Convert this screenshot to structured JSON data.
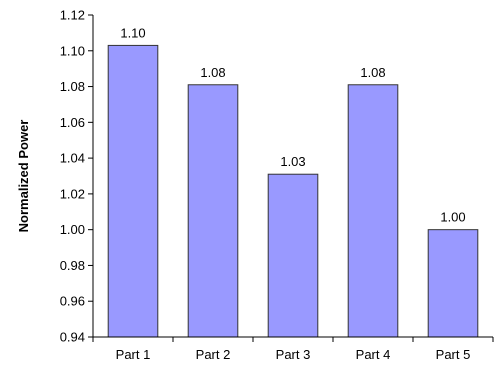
{
  "chart_data": {
    "type": "bar",
    "categories": [
      "Part 1",
      "Part 2",
      "Part 3",
      "Part 4",
      "Part 5"
    ],
    "values": [
      1.103,
      1.081,
      1.031,
      1.081,
      1.0
    ],
    "data_labels": [
      "1.10",
      "1.08",
      "1.03",
      "1.08",
      "1.00"
    ],
    "title": "",
    "xlabel": "",
    "ylabel": "Normalized Power",
    "ylim": [
      0.94,
      1.12
    ],
    "yticks": [
      0.94,
      0.96,
      0.98,
      1.0,
      1.02,
      1.04,
      1.06,
      1.08,
      1.1,
      1.12
    ],
    "ytick_labels": [
      "0.94",
      "0.96",
      "0.98",
      "1.00",
      "1.02",
      "1.04",
      "1.06",
      "1.08",
      "1.10",
      "1.12"
    ],
    "grid": false,
    "legend": "none",
    "colors": {
      "bar_fill": "#9999ff",
      "bar_stroke": "#333333",
      "axis": "#000000"
    }
  }
}
